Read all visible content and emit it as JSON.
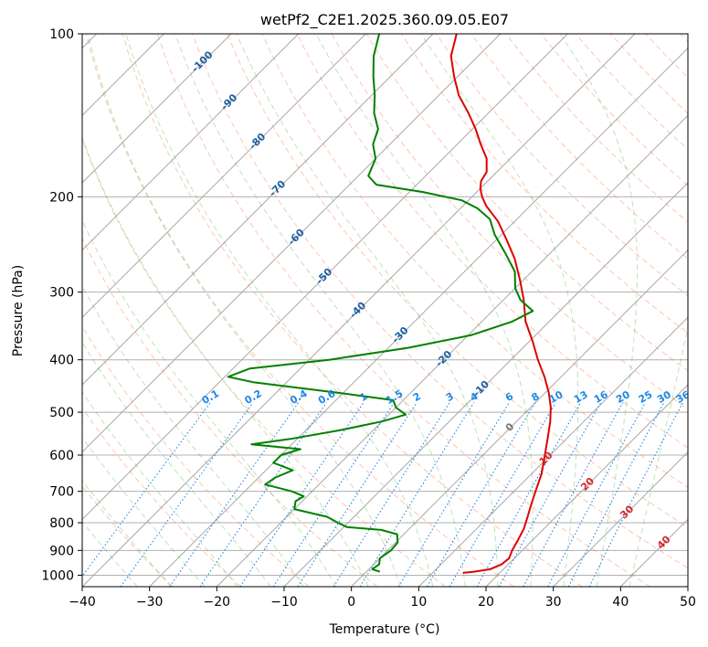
{
  "chart_data": {
    "type": "line",
    "subtype": "skew-t log-p diagram",
    "title": "wetPf2_C2E1.2025.360.09.05.E07",
    "xlabel": "Temperature (°C)",
    "ylabel": "Pressure (hPa)",
    "xlim": [
      -40,
      50
    ],
    "ylim": [
      1050,
      100
    ],
    "y_scale": "log",
    "grid": true,
    "x_ticks": [
      "−40",
      "−30",
      "−20",
      "−10",
      "0",
      "10",
      "20",
      "30",
      "40",
      "50"
    ],
    "y_ticks": [
      "100",
      "200",
      "300",
      "400",
      "500",
      "600",
      "700",
      "800",
      "900",
      "1000"
    ],
    "series": [
      {
        "color": "#e00000",
        "points": [
          {
            "p": 990,
            "t": 14.5
          },
          {
            "p": 985,
            "t": 16.0
          },
          {
            "p": 975,
            "t": 18.0
          },
          {
            "p": 955,
            "t": 19.0
          },
          {
            "p": 930,
            "t": 19.2
          },
          {
            "p": 900,
            "t": 18.5
          },
          {
            "p": 860,
            "t": 17.8
          },
          {
            "p": 820,
            "t": 17.0
          },
          {
            "p": 780,
            "t": 15.8
          },
          {
            "p": 740,
            "t": 14.5
          },
          {
            "p": 700,
            "t": 13.2
          },
          {
            "p": 650,
            "t": 11.5
          },
          {
            "p": 600,
            "t": 9.2
          },
          {
            "p": 560,
            "t": 7.2
          },
          {
            "p": 520,
            "t": 5.0
          },
          {
            "p": 490,
            "t": 3.0
          },
          {
            "p": 460,
            "t": 0.5
          },
          {
            "p": 430,
            "t": -2.5
          },
          {
            "p": 400,
            "t": -6.0
          },
          {
            "p": 370,
            "t": -9.5
          },
          {
            "p": 340,
            "t": -13.5
          },
          {
            "p": 310,
            "t": -17.0
          },
          {
            "p": 285,
            "t": -20.5
          },
          {
            "p": 260,
            "t": -24.5
          },
          {
            "p": 240,
            "t": -28.5
          },
          {
            "p": 222,
            "t": -32.5
          },
          {
            "p": 208,
            "t": -36.5
          },
          {
            "p": 200,
            "t": -38.5
          },
          {
            "p": 193,
            "t": -40.0
          },
          {
            "p": 187,
            "t": -41.0
          },
          {
            "p": 180,
            "t": -41.5
          },
          {
            "p": 170,
            "t": -43.5
          },
          {
            "p": 160,
            "t": -46.5
          },
          {
            "p": 150,
            "t": -49.5
          },
          {
            "p": 140,
            "t": -53.0
          },
          {
            "p": 130,
            "t": -57.0
          },
          {
            "p": 120,
            "t": -60.5
          },
          {
            "p": 110,
            "t": -64.0
          },
          {
            "p": 100,
            "t": -66.5
          }
        ]
      },
      {
        "color": "#008000",
        "points": [
          {
            "p": 985,
            "t": 2.0
          },
          {
            "p": 975,
            "t": 0.5
          },
          {
            "p": 955,
            "t": 0.8
          },
          {
            "p": 930,
            "t": 0.0
          },
          {
            "p": 900,
            "t": 0.5
          },
          {
            "p": 870,
            "t": 0.3
          },
          {
            "p": 840,
            "t": -1.0
          },
          {
            "p": 825,
            "t": -4.0
          },
          {
            "p": 815,
            "t": -9.5
          },
          {
            "p": 800,
            "t": -11.5
          },
          {
            "p": 780,
            "t": -14.0
          },
          {
            "p": 755,
            "t": -20.0
          },
          {
            "p": 730,
            "t": -21.0
          },
          {
            "p": 715,
            "t": -20.5
          },
          {
            "p": 700,
            "t": -23.0
          },
          {
            "p": 680,
            "t": -28.0
          },
          {
            "p": 660,
            "t": -27.5
          },
          {
            "p": 640,
            "t": -26.0
          },
          {
            "p": 620,
            "t": -30.0
          },
          {
            "p": 600,
            "t": -30.0
          },
          {
            "p": 585,
            "t": -28.0
          },
          {
            "p": 573,
            "t": -36.0
          },
          {
            "p": 560,
            "t": -31.0
          },
          {
            "p": 540,
            "t": -25.0
          },
          {
            "p": 520,
            "t": -20.0
          },
          {
            "p": 505,
            "t": -17.5
          },
          {
            "p": 490,
            "t": -20.0
          },
          {
            "p": 475,
            "t": -21.5
          },
          {
            "p": 460,
            "t": -31.0
          },
          {
            "p": 440,
            "t": -45.0
          },
          {
            "p": 430,
            "t": -49.5
          },
          {
            "p": 415,
            "t": -47.5
          },
          {
            "p": 400,
            "t": -37.0
          },
          {
            "p": 380,
            "t": -27.0
          },
          {
            "p": 360,
            "t": -19.5
          },
          {
            "p": 340,
            "t": -15.5
          },
          {
            "p": 325,
            "t": -14.0
          },
          {
            "p": 310,
            "t": -17.5
          },
          {
            "p": 295,
            "t": -20.0
          },
          {
            "p": 275,
            "t": -22.5
          },
          {
            "p": 255,
            "t": -26.5
          },
          {
            "p": 235,
            "t": -31.0
          },
          {
            "p": 220,
            "t": -34.0
          },
          {
            "p": 210,
            "t": -37.5
          },
          {
            "p": 203,
            "t": -41.0
          },
          {
            "p": 196,
            "t": -48.0
          },
          {
            "p": 190,
            "t": -56.0
          },
          {
            "p": 183,
            "t": -58.5
          },
          {
            "p": 170,
            "t": -60.0
          },
          {
            "p": 160,
            "t": -62.5
          },
          {
            "p": 150,
            "t": -64.0
          },
          {
            "p": 140,
            "t": -67.0
          },
          {
            "p": 130,
            "t": -69.5
          },
          {
            "p": 120,
            "t": -72.5
          },
          {
            "p": 110,
            "t": -75.5
          },
          {
            "p": 100,
            "t": -78.0
          }
        ]
      }
    ],
    "reference_lines": {
      "isotherms": {
        "color": "#a8a8a8"
      },
      "dry_adiabats": {
        "color": "#ff7f50"
      },
      "moist_adiabats": {
        "color": "#2ca02c"
      },
      "mixing_ratio": {
        "color": "#1e88e5",
        "labels": [
          "0.1",
          "0.2",
          "0.4",
          "0.6",
          "1",
          "1.5",
          "2",
          "3",
          "4",
          "6",
          "8",
          "10",
          "13",
          "16",
          "20",
          "25",
          "30",
          "36"
        ]
      },
      "skewed_isotherm_labels": {
        "color": "#1f5fa0",
        "labels": [
          "-100",
          "-90",
          "-80",
          "-70",
          "-60",
          "-50",
          "-40",
          "-30",
          "-20",
          "-10"
        ]
      },
      "zero_label": {
        "text": "0",
        "color": "#777777"
      },
      "warm_isotherm_labels": {
        "color": "#d62728",
        "labels": [
          "10",
          "20",
          "30",
          "40"
        ]
      }
    }
  }
}
